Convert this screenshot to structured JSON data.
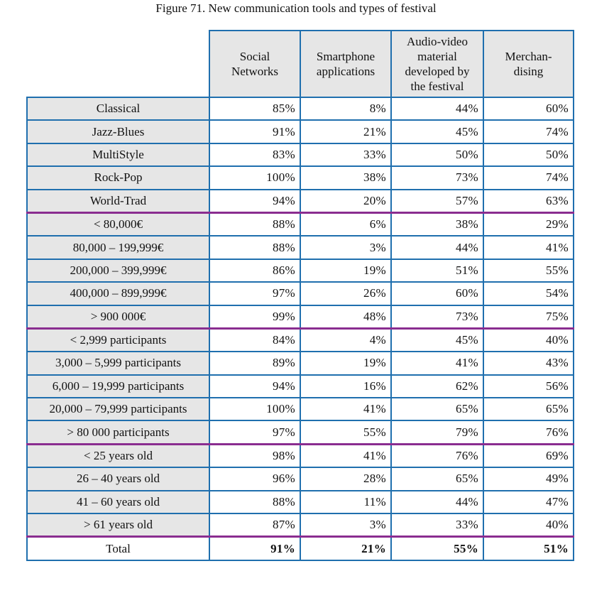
{
  "title": "Figure 71. New communication tools and types of festival",
  "columns": [
    "Social\nNetworks",
    "Smartphone\napplications",
    "Audio-video\nmaterial\ndeveloped by\nthe festival",
    "Merchan-\ndising"
  ],
  "rows": [
    {
      "label": "Classical",
      "values": [
        "85%",
        "8%",
        "44%",
        "60%"
      ]
    },
    {
      "label": "Jazz-Blues",
      "values": [
        "91%",
        "21%",
        "45%",
        "74%"
      ]
    },
    {
      "label": "MultiStyle",
      "values": [
        "83%",
        "33%",
        "50%",
        "50%"
      ]
    },
    {
      "label": "Rock-Pop",
      "values": [
        "100%",
        "38%",
        "73%",
        "74%"
      ]
    },
    {
      "label": "World-Trad",
      "values": [
        "94%",
        "20%",
        "57%",
        "63%"
      ]
    },
    {
      "label": "< 80,000€",
      "values": [
        "88%",
        "6%",
        "38%",
        "29%"
      ]
    },
    {
      "label": "80,000 – 199,999€",
      "values": [
        "88%",
        "3%",
        "44%",
        "41%"
      ]
    },
    {
      "label": "200,000 – 399,999€",
      "values": [
        "86%",
        "19%",
        "51%",
        "55%"
      ]
    },
    {
      "label": "400,000 – 899,999€",
      "values": [
        "97%",
        "26%",
        "60%",
        "54%"
      ]
    },
    {
      "label": "> 900 000€",
      "values": [
        "99%",
        "48%",
        "73%",
        "75%"
      ]
    },
    {
      "label": "< 2,999 participants",
      "values": [
        "84%",
        "4%",
        "45%",
        "40%"
      ]
    },
    {
      "label": "3,000 – 5,999 participants",
      "values": [
        "89%",
        "19%",
        "41%",
        "43%"
      ]
    },
    {
      "label": "6,000 – 19,999 participants",
      "values": [
        "94%",
        "16%",
        "62%",
        "56%"
      ]
    },
    {
      "label": "20,000 – 79,999 participants",
      "values": [
        "100%",
        "41%",
        "65%",
        "65%"
      ]
    },
    {
      "label": "> 80 000 participants",
      "values": [
        "97%",
        "55%",
        "79%",
        "76%"
      ]
    },
    {
      "label": "< 25 years old",
      "values": [
        "98%",
        "41%",
        "76%",
        "69%"
      ]
    },
    {
      "label": "26 – 40 years old",
      "values": [
        "96%",
        "28%",
        "65%",
        "49%"
      ]
    },
    {
      "label": "41 – 60 years old",
      "values": [
        "88%",
        "11%",
        "44%",
        "47%"
      ]
    },
    {
      "label": "> 61 years old",
      "values": [
        "87%",
        "3%",
        "33%",
        "40%"
      ]
    }
  ],
  "total": {
    "label": "Total",
    "values": [
      "91%",
      "21%",
      "55%",
      "51%"
    ]
  },
  "colors": {
    "border": "#1f6fae",
    "group_separator": "#8a2d90",
    "label_fill": "#e6e6e6"
  }
}
